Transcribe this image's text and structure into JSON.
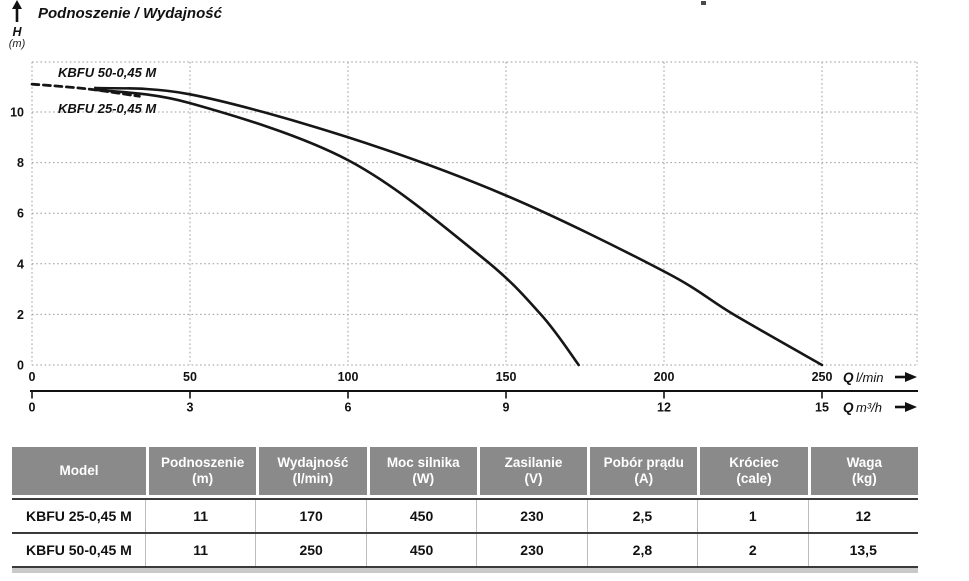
{
  "title": "Podnoszenie / Wydajność",
  "y_axis_label": {
    "symbol": "H",
    "unit": "(m)"
  },
  "chart_data": {
    "type": "line",
    "title": "Podnoszenie / Wydajność",
    "grid": "dotted",
    "legend_position": "inline-labels",
    "y_axis": {
      "label": "H (m)",
      "ticks": [
        10,
        8,
        6,
        4,
        2,
        0
      ],
      "range": [
        0,
        12
      ]
    },
    "x_axes": [
      {
        "name": "flow-l-min",
        "q_symbol": "Q",
        "unit": "l/min",
        "ticks": [
          0,
          50,
          100,
          150,
          200,
          250
        ],
        "max_tick": 250
      },
      {
        "name": "flow-m3-h",
        "q_symbol": "Q",
        "unit": "m³/h",
        "ticks": [
          0,
          3,
          6,
          9,
          12,
          15
        ],
        "max_tick": 15
      }
    ],
    "series": [
      {
        "name": "KBFU 50-0,45 M",
        "style": "solid",
        "points": [
          [
            20,
            10.95
          ],
          [
            50,
            10.7
          ],
          [
            100,
            9.0
          ],
          [
            150,
            6.7
          ],
          [
            200,
            3.7
          ],
          [
            222,
            2.0
          ],
          [
            250,
            0
          ]
        ]
      },
      {
        "name": "KBFU 25-0,45 M",
        "style": "solid",
        "points": [
          [
            20,
            10.88
          ],
          [
            50,
            10.35
          ],
          [
            100,
            8.1
          ],
          [
            142,
            4.3
          ],
          [
            161,
            2.0
          ],
          [
            173,
            0
          ]
        ]
      },
      {
        "name": "common-start",
        "style": "dashed",
        "points": [
          [
            0,
            11.1
          ],
          [
            17,
            10.92
          ],
          [
            34,
            10.62
          ]
        ]
      }
    ],
    "series_labels": [
      {
        "text": "KBFU 50-0,45 M",
        "x": 58,
        "y": 77
      },
      {
        "text": "KBFU 25-0,45 M",
        "x": 58,
        "y": 113
      }
    ]
  },
  "table": {
    "headers": [
      {
        "name": "Model",
        "unit": ""
      },
      {
        "name": "Podnoszenie",
        "unit": "(m)"
      },
      {
        "name": "Wydajność",
        "unit": "(l/min)"
      },
      {
        "name": "Moc silnika",
        "unit": "(W)"
      },
      {
        "name": "Zasilanie",
        "unit": "(V)"
      },
      {
        "name": "Pobór prądu",
        "unit": "(A)"
      },
      {
        "name": "Króciec",
        "unit": "(cale)"
      },
      {
        "name": "Waga",
        "unit": "(kg)"
      }
    ],
    "rows": [
      [
        "KBFU 25-0,45 M",
        "11",
        "170",
        "450",
        "230",
        "2,5",
        "1",
        "12"
      ],
      [
        "KBFU 50-0,45 M",
        "11",
        "250",
        "450",
        "230",
        "2,8",
        "2",
        "13,5"
      ]
    ]
  }
}
